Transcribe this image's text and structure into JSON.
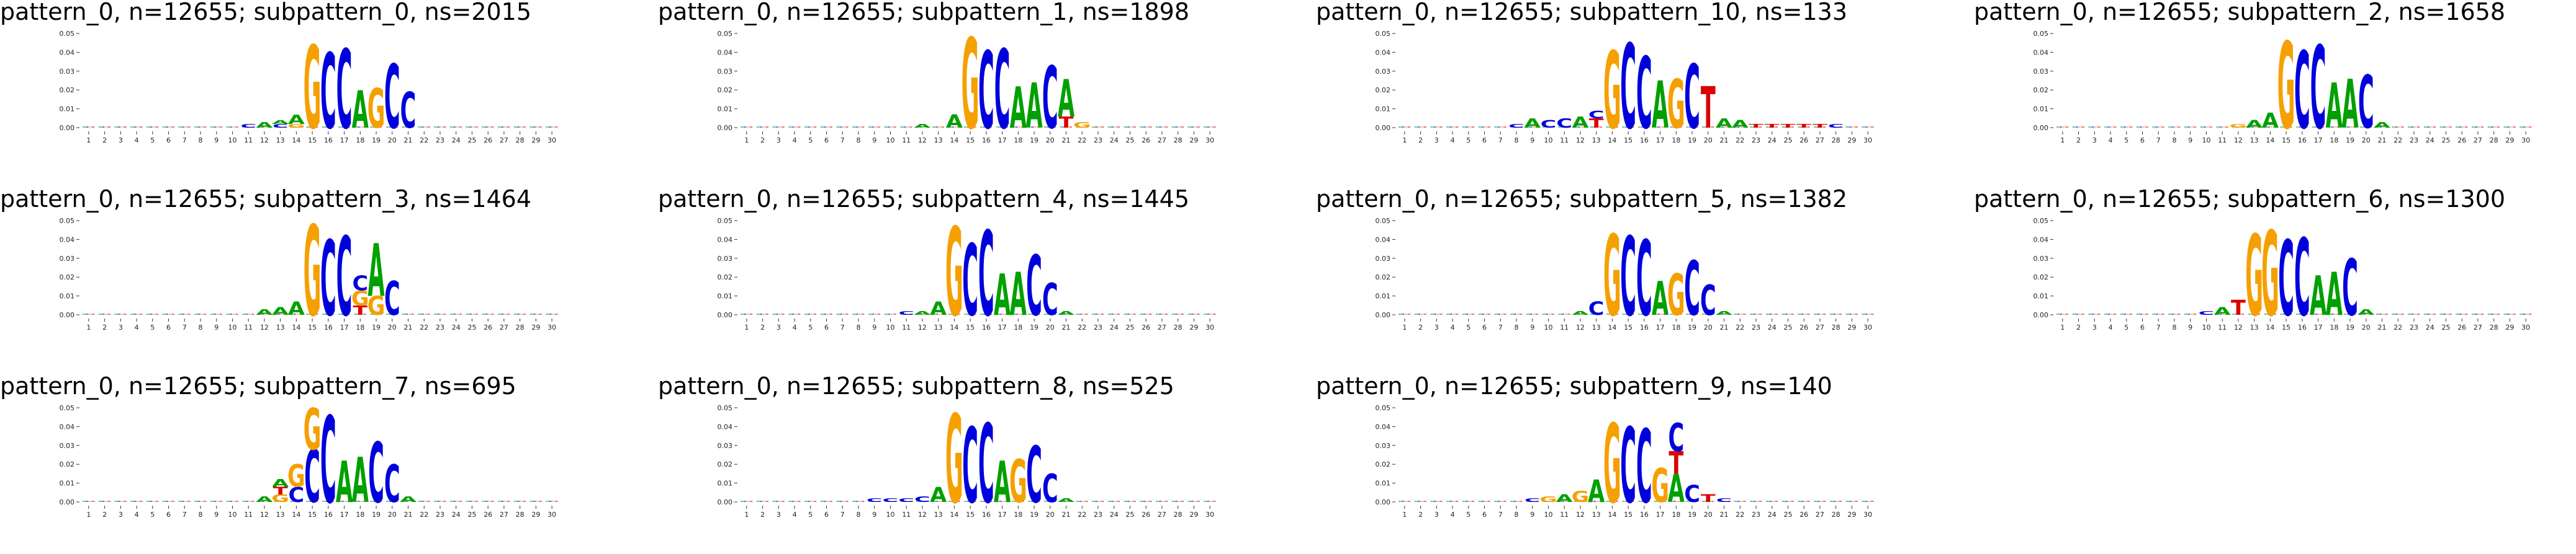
{
  "colors": {
    "A": "#00a000",
    "C": "#0000dd",
    "G": "#f5a000",
    "T": "#dd0000"
  },
  "chart_data": {
    "type": "sequence-logo",
    "x": [
      1,
      2,
      3,
      4,
      5,
      6,
      7,
      8,
      9,
      10,
      11,
      12,
      13,
      14,
      15,
      16,
      17,
      18,
      19,
      20,
      21,
      22,
      23,
      24,
      25,
      26,
      27,
      28,
      29,
      30
    ],
    "ylim": [
      0,
      0.05
    ],
    "yticks": [
      "0.00",
      "0.01",
      "0.02",
      "0.03",
      "0.04",
      "0.05"
    ],
    "panels": [
      {
        "title": "pattern_0, n=12655; subpattern_0, ns=2015",
        "letters": [
          [
            "C",
            11,
            0.002
          ],
          [
            "A",
            12,
            0.003
          ],
          [
            "C",
            13,
            0.002
          ],
          [
            "A",
            13,
            0.002
          ],
          [
            "G",
            14,
            0.002
          ],
          [
            "A",
            14,
            0.005
          ],
          [
            "G",
            15,
            0.044
          ],
          [
            "C",
            16,
            0.04
          ],
          [
            "C",
            17,
            0.042
          ],
          [
            "A",
            18,
            0.02
          ],
          [
            "G",
            19,
            0.021
          ],
          [
            "C",
            20,
            0.034
          ],
          [
            "C",
            21,
            0.019
          ]
        ]
      },
      {
        "title": "pattern_0, n=12655; subpattern_1, ns=1898",
        "letters": [
          [
            "A",
            12,
            0.002
          ],
          [
            "A",
            14,
            0.007
          ],
          [
            "G",
            15,
            0.048
          ],
          [
            "C",
            16,
            0.041
          ],
          [
            "C",
            17,
            0.042
          ],
          [
            "A",
            18,
            0.022
          ],
          [
            "A",
            19,
            0.024
          ],
          [
            "C",
            20,
            0.033
          ],
          [
            "T",
            21,
            0.006
          ],
          [
            "A",
            21,
            0.02
          ],
          [
            "G",
            22,
            0.003
          ]
        ]
      },
      {
        "title": "pattern_0, n=12655; subpattern_10, ns=133",
        "letters": [
          [
            "C",
            8,
            0.002
          ],
          [
            "A",
            9,
            0.005
          ],
          [
            "C",
            10,
            0.004
          ],
          [
            "C",
            11,
            0.005
          ],
          [
            "A",
            12,
            0.006
          ],
          [
            "T",
            13,
            0.005
          ],
          [
            "C",
            13,
            0.004
          ],
          [
            "G",
            14,
            0.041
          ],
          [
            "C",
            15,
            0.045
          ],
          [
            "C",
            16,
            0.038
          ],
          [
            "A",
            17,
            0.025
          ],
          [
            "G",
            18,
            0.026
          ],
          [
            "C",
            19,
            0.034
          ],
          [
            "T",
            20,
            0.022
          ],
          [
            "A",
            21,
            0.005
          ],
          [
            "A",
            22,
            0.004
          ],
          [
            "T",
            23,
            0.002
          ],
          [
            "T",
            24,
            0.002
          ],
          [
            "T",
            25,
            0.002
          ],
          [
            "T",
            26,
            0.002
          ],
          [
            "T",
            27,
            0.002
          ],
          [
            "C",
            28,
            0.002
          ]
        ]
      },
      {
        "title": "pattern_0, n=12655; subpattern_2, ns=1658",
        "letters": [
          [
            "G",
            12,
            0.002
          ],
          [
            "A",
            13,
            0.004
          ],
          [
            "A",
            14,
            0.008
          ],
          [
            "G",
            15,
            0.046
          ],
          [
            "C",
            16,
            0.041
          ],
          [
            "C",
            17,
            0.044
          ],
          [
            "A",
            18,
            0.024
          ],
          [
            "A",
            19,
            0.026
          ],
          [
            "C",
            20,
            0.028
          ],
          [
            "A",
            21,
            0.003
          ]
        ]
      },
      {
        "title": "pattern_0, n=12655; subpattern_3, ns=1464",
        "letters": [
          [
            "A",
            12,
            0.003
          ],
          [
            "A",
            13,
            0.004
          ],
          [
            "A",
            14,
            0.007
          ],
          [
            "G",
            15,
            0.048
          ],
          [
            "C",
            16,
            0.04
          ],
          [
            "C",
            17,
            0.042
          ],
          [
            "T",
            18,
            0.005
          ],
          [
            "G",
            18,
            0.008
          ],
          [
            "C",
            18,
            0.008
          ],
          [
            "G",
            19,
            0.01
          ],
          [
            "A",
            19,
            0.028
          ],
          [
            "C",
            20,
            0.018
          ]
        ]
      },
      {
        "title": "pattern_0, n=12655; subpattern_4, ns=1445",
        "letters": [
          [
            "C",
            11,
            0.002
          ],
          [
            "A",
            12,
            0.002
          ],
          [
            "A",
            13,
            0.007
          ],
          [
            "G",
            14,
            0.047
          ],
          [
            "C",
            15,
            0.038
          ],
          [
            "C",
            16,
            0.045
          ],
          [
            "A",
            17,
            0.022
          ],
          [
            "A",
            18,
            0.023
          ],
          [
            "C",
            19,
            0.032
          ],
          [
            "C",
            20,
            0.017
          ],
          [
            "A",
            21,
            0.002
          ]
        ]
      },
      {
        "title": "pattern_0, n=12655; subpattern_5, ns=1382",
        "letters": [
          [
            "A",
            12,
            0.002
          ],
          [
            "C",
            13,
            0.007
          ],
          [
            "G",
            14,
            0.043
          ],
          [
            "C",
            15,
            0.042
          ],
          [
            "C",
            16,
            0.04
          ],
          [
            "A",
            17,
            0.018
          ],
          [
            "G",
            18,
            0.022
          ],
          [
            "C",
            19,
            0.029
          ],
          [
            "C",
            20,
            0.016
          ],
          [
            "A",
            21,
            0.002
          ]
        ]
      },
      {
        "title": "pattern_0, n=12655; subpattern_6, ns=1300",
        "letters": [
          [
            "C",
            10,
            0.002
          ],
          [
            "A",
            11,
            0.004
          ],
          [
            "T",
            12,
            0.008
          ],
          [
            "G",
            13,
            0.043
          ],
          [
            "G",
            14,
            0.045
          ],
          [
            "C",
            15,
            0.04
          ],
          [
            "C",
            16,
            0.041
          ],
          [
            "A",
            17,
            0.021
          ],
          [
            "A",
            18,
            0.023
          ],
          [
            "C",
            19,
            0.03
          ],
          [
            "A",
            20,
            0.003
          ]
        ]
      },
      {
        "title": "pattern_0, n=12655; subpattern_7, ns=695",
        "letters": [
          [
            "A",
            12,
            0.003
          ],
          [
            "G",
            13,
            0.004
          ],
          [
            "T",
            13,
            0.004
          ],
          [
            "A",
            13,
            0.004
          ],
          [
            "C",
            14,
            0.008
          ],
          [
            "G",
            14,
            0.012
          ],
          [
            "C",
            15,
            0.028
          ],
          [
            "G",
            15,
            0.022
          ],
          [
            "C",
            16,
            0.046
          ],
          [
            "A",
            17,
            0.022
          ],
          [
            "A",
            18,
            0.024
          ],
          [
            "C",
            19,
            0.032
          ],
          [
            "C",
            20,
            0.02
          ],
          [
            "A",
            21,
            0.003
          ]
        ]
      },
      {
        "title": "pattern_0, n=12655; subpattern_8, ns=525",
        "letters": [
          [
            "C",
            9,
            0.002
          ],
          [
            "C",
            10,
            0.002
          ],
          [
            "C",
            11,
            0.002
          ],
          [
            "C",
            12,
            0.003
          ],
          [
            "A",
            13,
            0.008
          ],
          [
            "G",
            14,
            0.047
          ],
          [
            "C",
            15,
            0.04
          ],
          [
            "C",
            16,
            0.042
          ],
          [
            "A",
            17,
            0.022
          ],
          [
            "G",
            18,
            0.023
          ],
          [
            "C",
            19,
            0.03
          ],
          [
            "C",
            20,
            0.015
          ],
          [
            "A",
            21,
            0.002
          ]
        ]
      },
      {
        "title": "pattern_0, n=12655; subpattern_9, ns=140",
        "letters": [
          [
            "C",
            9,
            0.002
          ],
          [
            "G",
            10,
            0.003
          ],
          [
            "A",
            11,
            0.004
          ],
          [
            "G",
            12,
            0.006
          ],
          [
            "A",
            13,
            0.012
          ],
          [
            "G",
            14,
            0.042
          ],
          [
            "C",
            15,
            0.04
          ],
          [
            "C",
            16,
            0.039
          ],
          [
            "G",
            17,
            0.018
          ],
          [
            "A",
            18,
            0.015
          ],
          [
            "T",
            18,
            0.012
          ],
          [
            "C",
            18,
            0.015
          ],
          [
            "C",
            19,
            0.009
          ],
          [
            "T",
            20,
            0.004
          ],
          [
            "C",
            21,
            0.002
          ]
        ]
      }
    ]
  }
}
